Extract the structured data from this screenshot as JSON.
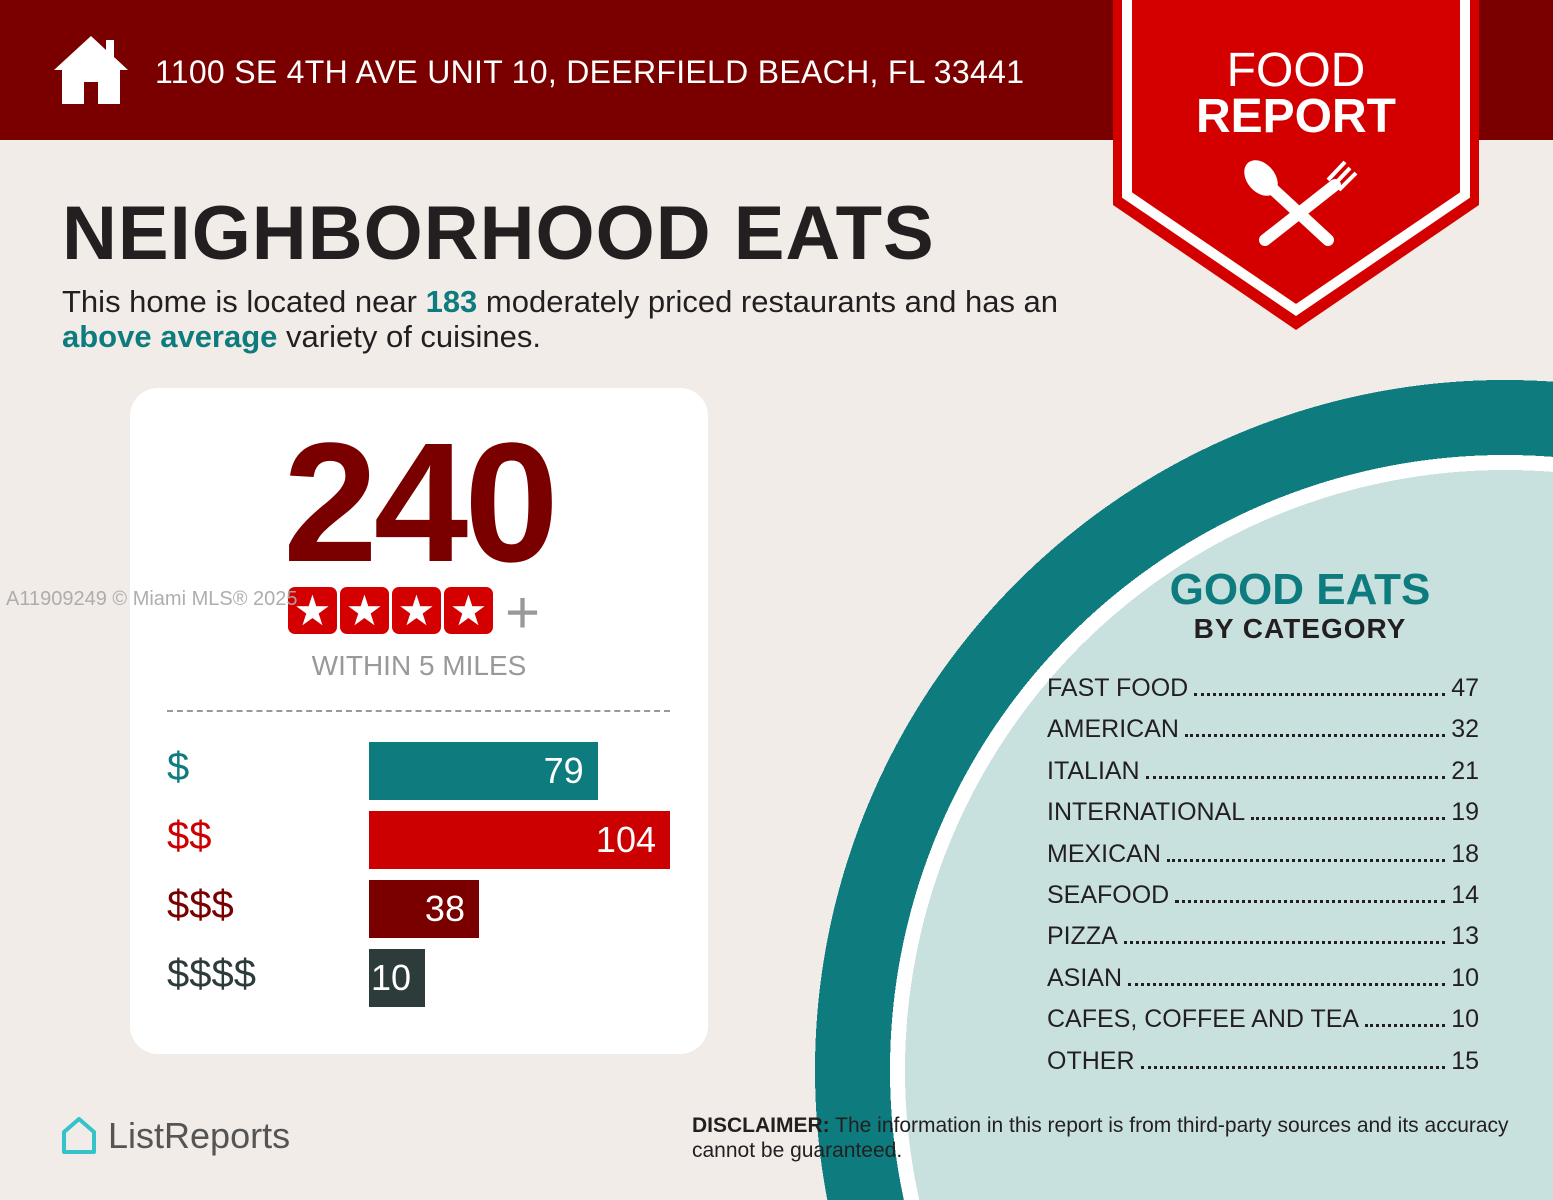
{
  "header": {
    "address": "1100 SE 4TH AVE UNIT 10, DEERFIELD BEACH, FL 33441",
    "icon": "home-icon"
  },
  "badge": {
    "line1": "FOOD",
    "line2": "REPORT",
    "icon": "spoon-fork-icon"
  },
  "title": "NEIGHBORHOOD EATS",
  "subtitle": {
    "p1": "This home is located near ",
    "count": "183",
    "p2": " moderately priced restaurants and has an ",
    "variety": "above average",
    "p3": " variety of cuisines."
  },
  "summary": {
    "total": "240",
    "rating_stars": 4,
    "rating_plus": "+",
    "within": "WITHIN 5 MILES"
  },
  "chart_data": {
    "type": "bar",
    "categories": [
      "$",
      "$$",
      "$$$",
      "$$$$"
    ],
    "values": [
      79,
      104,
      38,
      10
    ],
    "colors": [
      "#0e7c7e",
      "#cc0000",
      "#7a0000",
      "#2e3b3b"
    ]
  },
  "categories": {
    "title": "GOOD EATS",
    "subtitle": "BY CATEGORY",
    "items": [
      {
        "name": "FAST FOOD",
        "count": "47"
      },
      {
        "name": "AMERICAN",
        "count": "32"
      },
      {
        "name": "ITALIAN",
        "count": "21"
      },
      {
        "name": "INTERNATIONAL",
        "count": "19"
      },
      {
        "name": "MEXICAN",
        "count": "18"
      },
      {
        "name": "SEAFOOD",
        "count": "14"
      },
      {
        "name": "PIZZA",
        "count": "13"
      },
      {
        "name": "ASIAN",
        "count": "10"
      },
      {
        "name": "CAFES, COFFEE AND TEA",
        "count": "10"
      },
      {
        "name": "OTHER",
        "count": "15"
      }
    ]
  },
  "footer": {
    "logo": "ListReports",
    "disclaimer_label": "DISCLAIMER:",
    "disclaimer": " The information in this report is from third-party sources and its accuracy cannot be guaranteed."
  },
  "watermark": "A11909249 © Miami MLS® 2025"
}
